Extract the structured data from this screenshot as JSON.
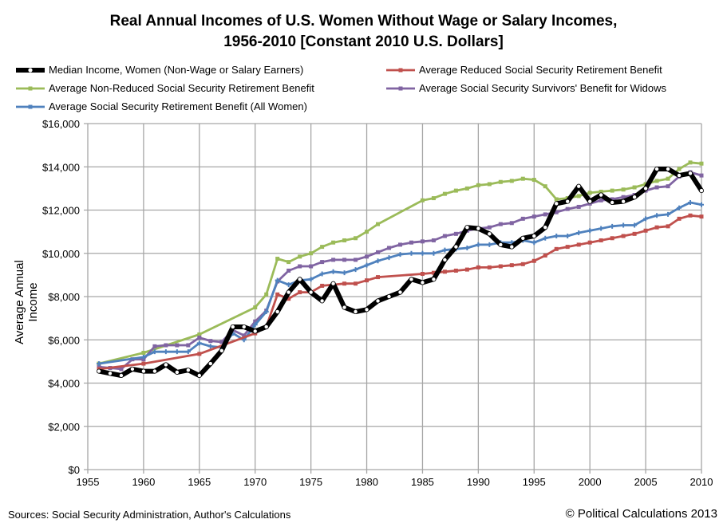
{
  "chart_data": {
    "type": "line",
    "title": "Real Annual Incomes of U.S. Women Without Wage or Salary Incomes, 1956-2010 [Constant 2010 U.S. Dollars]",
    "ylabel": "Average Annual Income",
    "xlabel": "",
    "xlim": [
      1955,
      2010
    ],
    "ylim": [
      0,
      16000
    ],
    "x_ticks": [
      "1955",
      "1960",
      "1965",
      "1970",
      "1975",
      "1980",
      "1985",
      "1990",
      "1995",
      "2000",
      "2005",
      "2010"
    ],
    "y_ticks": [
      "$0",
      "$2,000",
      "$4,000",
      "$6,000",
      "$8,000",
      "$10,000",
      "$12,000",
      "$14,000",
      "$16,000"
    ],
    "grid": true,
    "legend": "top",
    "x": [
      1956,
      1957,
      1958,
      1959,
      1960,
      1961,
      1962,
      1963,
      1964,
      1965,
      1966,
      1967,
      1968,
      1969,
      1970,
      1971,
      1972,
      1973,
      1974,
      1975,
      1976,
      1977,
      1978,
      1979,
      1980,
      1981,
      1982,
      1983,
      1984,
      1985,
      1986,
      1987,
      1988,
      1989,
      1990,
      1991,
      1992,
      1993,
      1994,
      1995,
      1996,
      1997,
      1998,
      1999,
      2000,
      2001,
      2002,
      2003,
      2004,
      2005,
      2006,
      2007,
      2008,
      2009,
      2010
    ],
    "series": [
      {
        "name": "Median Income, Women (Non-Wage or Salary Earners)",
        "color": "#000000",
        "values": [
          4550,
          4450,
          4350,
          4650,
          4550,
          4550,
          4850,
          4500,
          4600,
          4350,
          4900,
          5500,
          6600,
          6600,
          6400,
          6600,
          7300,
          8200,
          8800,
          8200,
          7800,
          8600,
          7500,
          7300,
          7400,
          7800,
          8000,
          8200,
          8800,
          8650,
          8800,
          9700,
          10300,
          11200,
          11150,
          10900,
          10400,
          10300,
          10700,
          10800,
          11200,
          12300,
          12400,
          13100,
          12400,
          12700,
          12350,
          12400,
          12600,
          13000,
          13900,
          13900,
          13600,
          13700,
          12900
        ]
      },
      {
        "name": "Average Reduced Social Security Retirement Benefit",
        "color": "#c0504d",
        "values": [
          4650,
          null,
          null,
          null,
          4900,
          null,
          null,
          null,
          null,
          5350,
          null,
          null,
          null,
          null,
          6300,
          6600,
          8100,
          7900,
          8200,
          8200,
          8500,
          8550,
          8600,
          8600,
          8750,
          8900,
          null,
          null,
          null,
          9050,
          9100,
          9150,
          9200,
          9250,
          9350,
          9350,
          9400,
          9450,
          9500,
          9650,
          9900,
          10200,
          10300,
          10400,
          10500,
          10600,
          10700,
          10800,
          10900,
          11050,
          11200,
          11250,
          11600,
          11750,
          11700
        ]
      },
      {
        "name": "Average Non-Reduced Social Security Retirement Benefit",
        "color": "#9bbb59",
        "values": [
          4900,
          null,
          null,
          null,
          5400,
          null,
          null,
          null,
          null,
          6250,
          null,
          null,
          null,
          null,
          7500,
          8100,
          9750,
          9600,
          9850,
          10000,
          10300,
          10500,
          10600,
          10700,
          11000,
          11350,
          null,
          null,
          null,
          12450,
          12550,
          12750,
          12900,
          13000,
          13150,
          13200,
          13300,
          13350,
          13450,
          13400,
          13100,
          12500,
          12550,
          12650,
          12800,
          12850,
          12900,
          12950,
          13050,
          13200,
          13350,
          13450,
          13900,
          14200,
          14150
        ]
      },
      {
        "name": "Average Social Security Survivors' Benefit for Widows",
        "color": "#8064a2",
        "values": [
          4750,
          4700,
          4650,
          5100,
          5100,
          5700,
          5750,
          5750,
          5750,
          6100,
          5950,
          5900,
          6450,
          6200,
          6850,
          7350,
          8700,
          9200,
          9400,
          9400,
          9600,
          9700,
          9700,
          9700,
          9850,
          10050,
          10250,
          10400,
          10500,
          10550,
          10600,
          10800,
          10900,
          11050,
          11150,
          11200,
          11350,
          11400,
          11600,
          11700,
          11800,
          11900,
          12050,
          12150,
          12300,
          12450,
          12500,
          12600,
          12700,
          12900,
          13050,
          13100,
          13550,
          13750,
          13600
        ]
      },
      {
        "name": "Average Social Security Retirement Benefit (All Women)",
        "color": "#4f81bd",
        "values": [
          4900,
          null,
          null,
          null,
          5200,
          5450,
          5450,
          5450,
          5450,
          5850,
          5700,
          5650,
          6300,
          6000,
          6700,
          7300,
          8750,
          8550,
          8750,
          8800,
          9050,
          9150,
          9100,
          9250,
          9450,
          9650,
          9800,
          9950,
          10000,
          10000,
          10000,
          10150,
          10200,
          10250,
          10400,
          10400,
          10500,
          10500,
          10600,
          10500,
          10700,
          10800,
          10800,
          10950,
          11050,
          11150,
          11250,
          11300,
          11300,
          11600,
          11750,
          11800,
          12100,
          12350,
          12250
        ]
      }
    ]
  },
  "footer": {
    "source": "Sources: Social Security Administration, Author's Calculations",
    "copyright": "© Political Calculations 2013"
  }
}
